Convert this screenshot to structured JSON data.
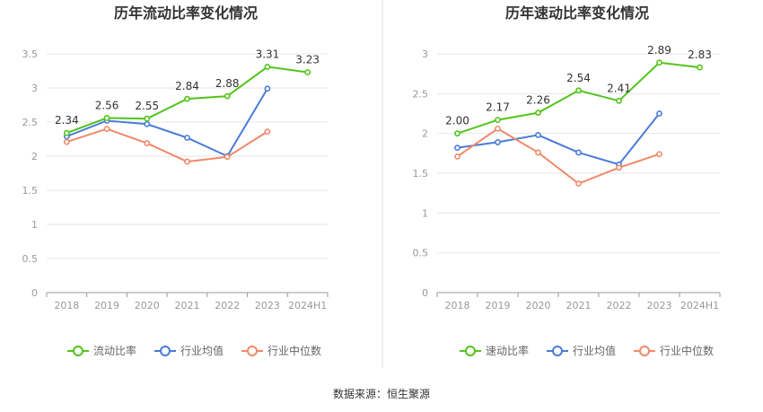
{
  "source": "数据来源：恒生聚源",
  "colors": {
    "company": "#52c41a",
    "mean": "#4a7bd8",
    "median": "#f0896a",
    "grid": "#e6e6e6",
    "axis": "#999999",
    "divider": "#dddddd"
  },
  "chart_data": [
    {
      "type": "line",
      "title": "历年流动比率变化情况",
      "categories": [
        "2018",
        "2019",
        "2020",
        "2021",
        "2022",
        "2023",
        "2024H1"
      ],
      "ylim": [
        0,
        3.5
      ],
      "yticks": [
        "0",
        "0.5",
        "1",
        "1.5",
        "2",
        "2.5",
        "3",
        "3.5"
      ],
      "grid": true,
      "legend_position": "bottom",
      "series": [
        {
          "name": "流动比率",
          "key": "company",
          "values": [
            2.34,
            2.56,
            2.55,
            2.84,
            2.88,
            3.31,
            3.23
          ],
          "labels": [
            "2.34",
            "2.56",
            "2.55",
            "2.84",
            "2.88",
            "3.31",
            "3.23"
          ]
        },
        {
          "name": "行业均值",
          "key": "mean",
          "values": [
            2.29,
            2.52,
            2.47,
            2.27,
            2.0,
            2.99,
            null
          ]
        },
        {
          "name": "行业中位数",
          "key": "median",
          "values": [
            2.21,
            2.4,
            2.19,
            1.92,
            1.99,
            2.36,
            null
          ]
        }
      ]
    },
    {
      "type": "line",
      "title": "历年速动比率变化情况",
      "categories": [
        "2018",
        "2019",
        "2020",
        "2021",
        "2022",
        "2023",
        "2024H1"
      ],
      "ylim": [
        0,
        3
      ],
      "yticks": [
        "0",
        "0.5",
        "1",
        "1.5",
        "2",
        "2.5",
        "3"
      ],
      "grid": true,
      "legend_position": "bottom",
      "series": [
        {
          "name": "速动比率",
          "key": "company",
          "values": [
            2.0,
            2.17,
            2.26,
            2.54,
            2.41,
            2.89,
            2.83
          ],
          "labels": [
            "2.00",
            "2.17",
            "2.26",
            "2.54",
            "2.41",
            "2.89",
            "2.83"
          ]
        },
        {
          "name": "行业均值",
          "key": "mean",
          "values": [
            1.82,
            1.89,
            1.98,
            1.76,
            1.61,
            2.25,
            null
          ]
        },
        {
          "name": "行业中位数",
          "key": "median",
          "values": [
            1.71,
            2.06,
            1.76,
            1.37,
            1.57,
            1.74,
            null
          ]
        }
      ]
    }
  ]
}
